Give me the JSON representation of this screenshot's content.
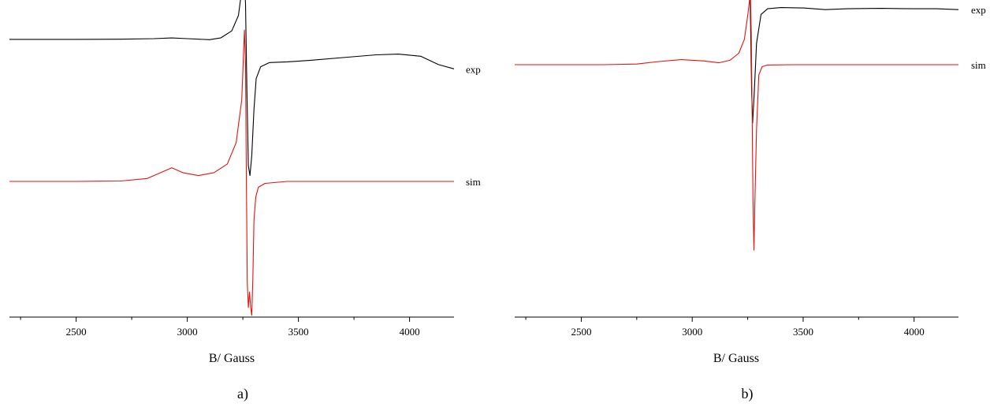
{
  "chart_data": [
    {
      "type": "line",
      "panel_label": "a)",
      "xlabel": "B/ Gauss",
      "ylabel": "",
      "xlim": [
        2200,
        4200
      ],
      "xticks": [
        2500,
        3000,
        3500,
        4000
      ],
      "y_axis_shown": false,
      "grid": false,
      "legend": "inline-right",
      "series": [
        {
          "name": "exp",
          "color": "#000000",
          "x": [
            2200,
            2500,
            2700,
            2850,
            2930,
            3000,
            3100,
            3150,
            3200,
            3230,
            3245,
            3255,
            3262,
            3268,
            3275,
            3282,
            3290,
            3300,
            3310,
            3330,
            3370,
            3450,
            3550,
            3700,
            3850,
            3950,
            4050,
            4130,
            4200
          ],
          "y": [
            0.45,
            0.45,
            0.451,
            0.455,
            0.46,
            0.455,
            0.448,
            0.46,
            0.51,
            0.62,
            0.8,
            0.96,
            0.7,
            0.1,
            -0.45,
            -0.52,
            -0.38,
            -0.05,
            0.17,
            0.255,
            0.285,
            0.29,
            0.3,
            0.32,
            0.34,
            0.345,
            0.33,
            0.27,
            0.24
          ]
        },
        {
          "name": "sim",
          "color": "#e8110f",
          "x": [
            2200,
            2500,
            2700,
            2820,
            2880,
            2930,
            2980,
            3050,
            3120,
            3180,
            3220,
            3245,
            3257,
            3262,
            3266,
            3270,
            3275,
            3280,
            3285,
            3290,
            3295,
            3300,
            3308,
            3320,
            3350,
            3450,
            4200
          ],
          "y": [
            0.0,
            0.0,
            0.002,
            0.015,
            0.045,
            0.07,
            0.045,
            0.03,
            0.045,
            0.09,
            0.2,
            0.42,
            0.78,
            0.6,
            0.0,
            -0.52,
            -0.65,
            -0.57,
            -0.65,
            -0.69,
            -0.5,
            -0.2,
            -0.08,
            -0.03,
            -0.01,
            0.0,
            0.0
          ]
        }
      ]
    },
    {
      "type": "line",
      "panel_label": "b)",
      "xlabel": "B/ Gauss",
      "ylabel": "",
      "xlim": [
        2200,
        4200
      ],
      "xticks": [
        2500,
        3000,
        3500,
        4000
      ],
      "y_axis_shown": false,
      "grid": false,
      "legend": "inline-right",
      "series": [
        {
          "name": "exp",
          "color": "#000000",
          "x": [
            2200,
            2500,
            2700,
            2850,
            2920,
            2990,
            3100,
            3150,
            3190,
            3215,
            3235,
            3248,
            3256,
            3260,
            3264,
            3268,
            3272,
            3280,
            3290,
            3310,
            3340,
            3400,
            3500,
            3600,
            3700,
            3850,
            4000,
            4100,
            4200
          ],
          "y": [
            0.56,
            0.555,
            0.56,
            0.57,
            0.582,
            0.57,
            0.57,
            0.59,
            0.62,
            0.68,
            0.78,
            0.9,
            0.985,
            0.7,
            0.1,
            -0.6,
            -0.99,
            -0.6,
            0.0,
            0.36,
            0.43,
            0.445,
            0.44,
            0.42,
            0.43,
            0.435,
            0.43,
            0.43,
            0.42
          ]
        },
        {
          "name": "sim",
          "color": "#e8110f",
          "x": [
            2200,
            2600,
            2750,
            2850,
            2950,
            3050,
            3120,
            3170,
            3210,
            3235,
            3252,
            3262,
            3266,
            3270,
            3274,
            3278,
            3282,
            3290,
            3300,
            3315,
            3340,
            3450,
            4200
          ],
          "y": [
            0.36,
            0.36,
            0.365,
            0.385,
            0.4,
            0.39,
            0.375,
            0.395,
            0.45,
            0.56,
            0.77,
            0.93,
            0.6,
            0.0,
            -0.7,
            -1.1,
            -0.75,
            -0.15,
            0.28,
            0.345,
            0.358,
            0.36,
            0.36
          ]
        }
      ]
    }
  ]
}
